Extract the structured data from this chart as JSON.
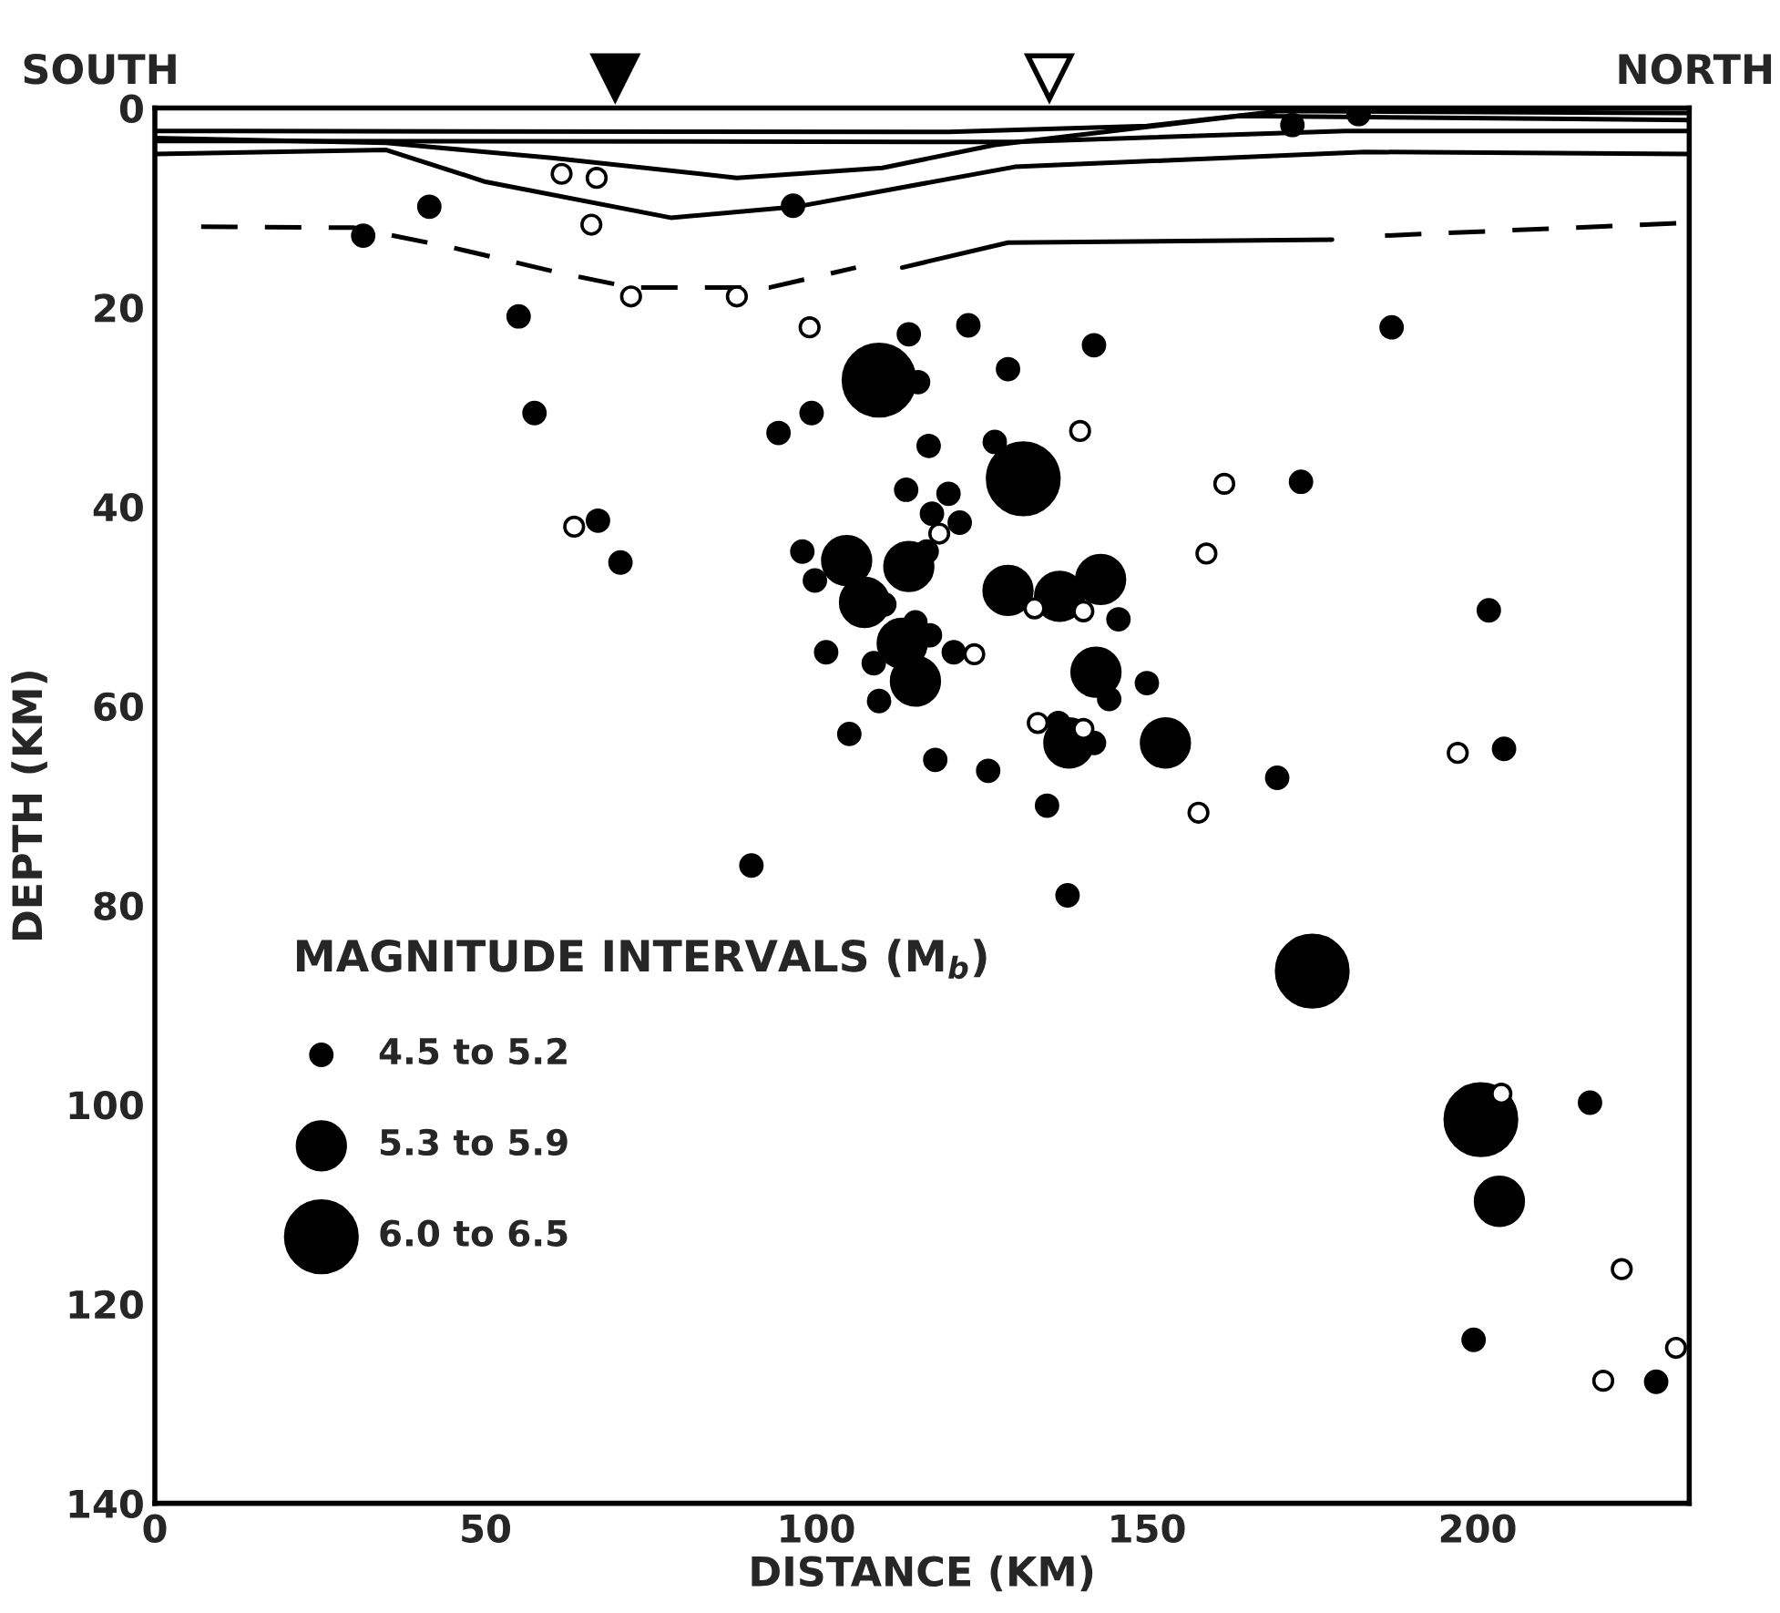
{
  "chart_data": {
    "type": "scatter",
    "xlabel": "DISTANCE (KM)",
    "ylabel": "DEPTH (KM)",
    "legend_title": "MAGNITUDE INTERVALS (M$_{b}$)",
    "annotations": [
      "SOUTH",
      "NORTH"
    ],
    "xlim": [
      0,
      232
    ],
    "xticks": [
      0,
      50,
      100,
      150,
      200
    ],
    "ylim": [
      140,
      0
    ],
    "yticks": [
      0,
      20,
      40,
      60,
      80,
      100,
      120,
      140
    ],
    "grid": false,
    "legend": "bottom left",
    "series": [
      {
        "type": "line",
        "color": "#000000",
        "line_style": "solid",
        "x": [
          0,
          120,
          150,
          170,
          232
        ],
        "values": [
          2.3,
          2.4,
          1.8,
          0.3,
          0.5
        ]
      },
      {
        "type": "line",
        "color": "#000000",
        "line_style": "solid",
        "x": [
          0,
          130,
          180,
          232
        ],
        "values": [
          3.3,
          3.4,
          2.3,
          2.3
        ]
      },
      {
        "type": "line",
        "color": "#000000",
        "line_style": "solid",
        "x": [
          0,
          35,
          60,
          88,
          110,
          127,
          164,
          232
        ],
        "values": [
          3.0,
          3.5,
          5,
          7,
          6,
          3.7,
          0.8,
          1.2
        ]
      },
      {
        "type": "line",
        "color": "#000000",
        "line_style": "solid",
        "x": [
          0,
          35,
          50,
          78,
          97,
          130,
          183,
          232
        ],
        "values": [
          4.6,
          4.2,
          7.4,
          11,
          9.9,
          5.9,
          4.4,
          4.6
        ]
      },
      {
        "type": "line",
        "color": "#000000",
        "line_style": "solid",
        "x": [
          113,
          129,
          178
        ],
        "values": [
          16,
          13.5,
          13.2
        ]
      },
      {
        "type": "line",
        "color": "#000000",
        "line_style": "dashed",
        "x": [
          7,
          30,
          45,
          61,
          72,
          93,
          106,
          150,
          186,
          232
        ],
        "values": [
          11.9,
          12,
          14,
          16.5,
          18,
          18,
          16,
          null,
          12.8,
          11.5
        ]
      },
      {
        "name": "4.5 to 5.2",
        "color": "#000000",
        "marker": "circle",
        "x": [
          31.5,
          41.5,
          96.5,
          172,
          182,
          55,
          114,
          123,
          129,
          142,
          187,
          57.4,
          67,
          70.4,
          115.4,
          99.3,
          94.3,
          117,
          127,
          113.6,
          120,
          117.5,
          121.7,
          97.9,
          99.8,
          116.7,
          110.3,
          115,
          117.2,
          101.5,
          108.7,
          120.8,
          109.5,
          105,
          118,
          126,
          173.3,
          145.7,
          144.3,
          150,
          136.6,
          142,
          134.9,
          169.7,
          201.7,
          204,
          138,
          90.2,
          217,
          199.4,
          227
        ],
        "values": [
          12.8,
          9.9,
          9.8,
          1.7,
          0.6,
          20.9,
          22.7,
          21.8,
          26.2,
          23.8,
          22,
          30.6,
          41.4,
          45.6,
          27.5,
          30.6,
          32.6,
          33.9,
          33.5,
          38.3,
          38.7,
          40.7,
          41.6,
          44.5,
          47.4,
          44.5,
          49.8,
          51.6,
          52.9,
          54.6,
          55.7,
          54.6,
          59.5,
          62.8,
          65.4,
          66.5,
          37.5,
          51.3,
          59.3,
          57.7,
          61.7,
          63.7,
          70,
          67.2,
          50.4,
          64.3,
          79,
          76,
          99.8,
          123.6,
          127.8
        ]
      },
      {
        "name": "5.3 to 5.9",
        "color": "#000000",
        "marker": "circle",
        "x": [
          104.6,
          114,
          107.3,
          113,
          115,
          129,
          136.8,
          143,
          142.3,
          138.2,
          152.8,
          203.3
        ],
        "values": [
          45.4,
          46,
          49.6,
          53.7,
          57.5,
          48.4,
          49,
          47.3,
          56.6,
          63.7,
          63.7,
          109.7
        ]
      },
      {
        "name": "6.0 to 6.5",
        "color": "#000000",
        "marker": "circle",
        "x": [
          109.5,
          131.3,
          175,
          200.5
        ],
        "values": [
          27.3,
          37.2,
          86.6,
          101.5
        ]
      },
      {
        "color": "#ffffff",
        "marker": "circle",
        "x": [
          61.5,
          66.8,
          66,
          72,
          88,
          99,
          63.4,
          118.6,
          123.9,
          139.9,
          161.7,
          159,
          133,
          140.4,
          133.5,
          140.4,
          157.8,
          197,
          203.6,
          221.8,
          230,
          219
        ],
        "values": [
          6.6,
          7,
          11.7,
          18.9,
          18.9,
          22,
          42,
          42.7,
          54.8,
          32.4,
          37.7,
          44.7,
          50.2,
          50.5,
          61.7,
          62.3,
          70.7,
          64.7,
          98.9,
          116.5,
          124.4,
          127.7
        ]
      }
    ]
  }
}
